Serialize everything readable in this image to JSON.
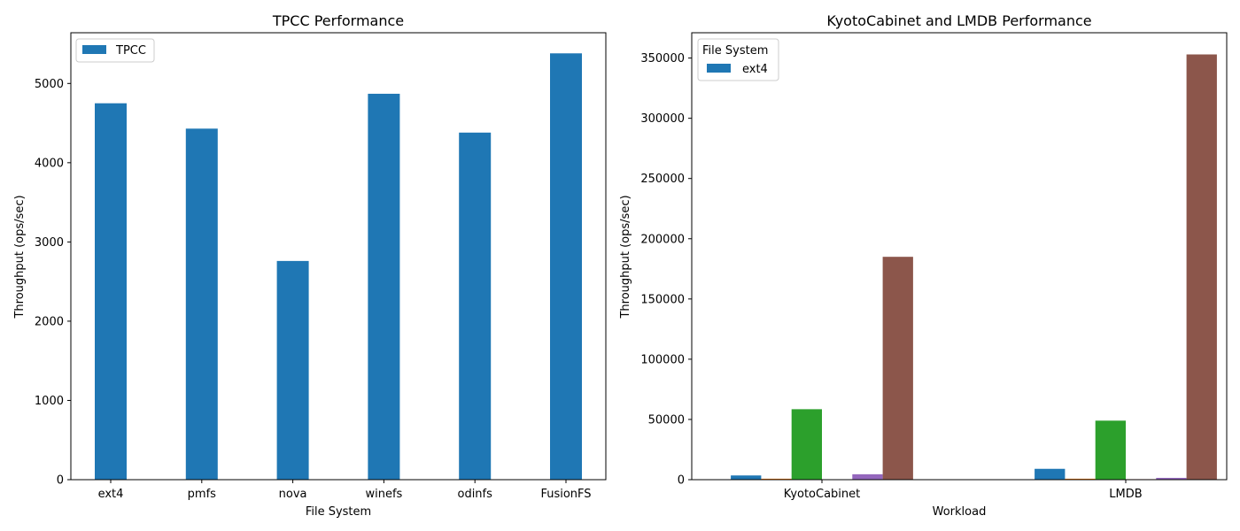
{
  "chart_data": [
    {
      "type": "bar",
      "title": "TPCC Performance",
      "xlabel": "File System",
      "ylabel": "Throughput (ops/sec)",
      "categories": [
        "ext4",
        "pmfs",
        "nova",
        "winefs",
        "odinfs",
        "FusionFS"
      ],
      "series": [
        {
          "name": "TPCC",
          "color": "#1f77b4",
          "values": [
            4750,
            4430,
            2760,
            4870,
            4380,
            5380
          ]
        }
      ],
      "ylim": [
        0,
        5640
      ],
      "yticks": [
        0,
        1000,
        2000,
        3000,
        4000,
        5000
      ],
      "legend": {
        "placement": "top-left"
      },
      "grid": false
    },
    {
      "type": "bar",
      "title": "KyotoCabinet and LMDB Performance",
      "xlabel": "Workload",
      "ylabel": "Throughput (ops/sec)",
      "categories": [
        "KyotoCabinet",
        "LMDB"
      ],
      "series": [
        {
          "name": "ext4",
          "color": "#1f77b4",
          "values": [
            3500,
            9000
          ]
        },
        {
          "color": "#ff7f0e",
          "values": [
            800,
            800
          ]
        },
        {
          "color": "#2ca02c",
          "values": [
            58500,
            49000
          ]
        },
        {
          "color": "#d62728",
          "values": [
            300,
            400
          ]
        },
        {
          "color": "#9467bd",
          "values": [
            4500,
            1500
          ]
        },
        {
          "color": "#8c564b",
          "values": [
            185000,
            353000
          ]
        }
      ],
      "ylim": [
        0,
        371000
      ],
      "yticks": [
        0,
        50000,
        100000,
        150000,
        200000,
        250000,
        300000,
        350000
      ],
      "legend": {
        "title": "File System",
        "placement": "top-left"
      },
      "grid": false
    }
  ]
}
